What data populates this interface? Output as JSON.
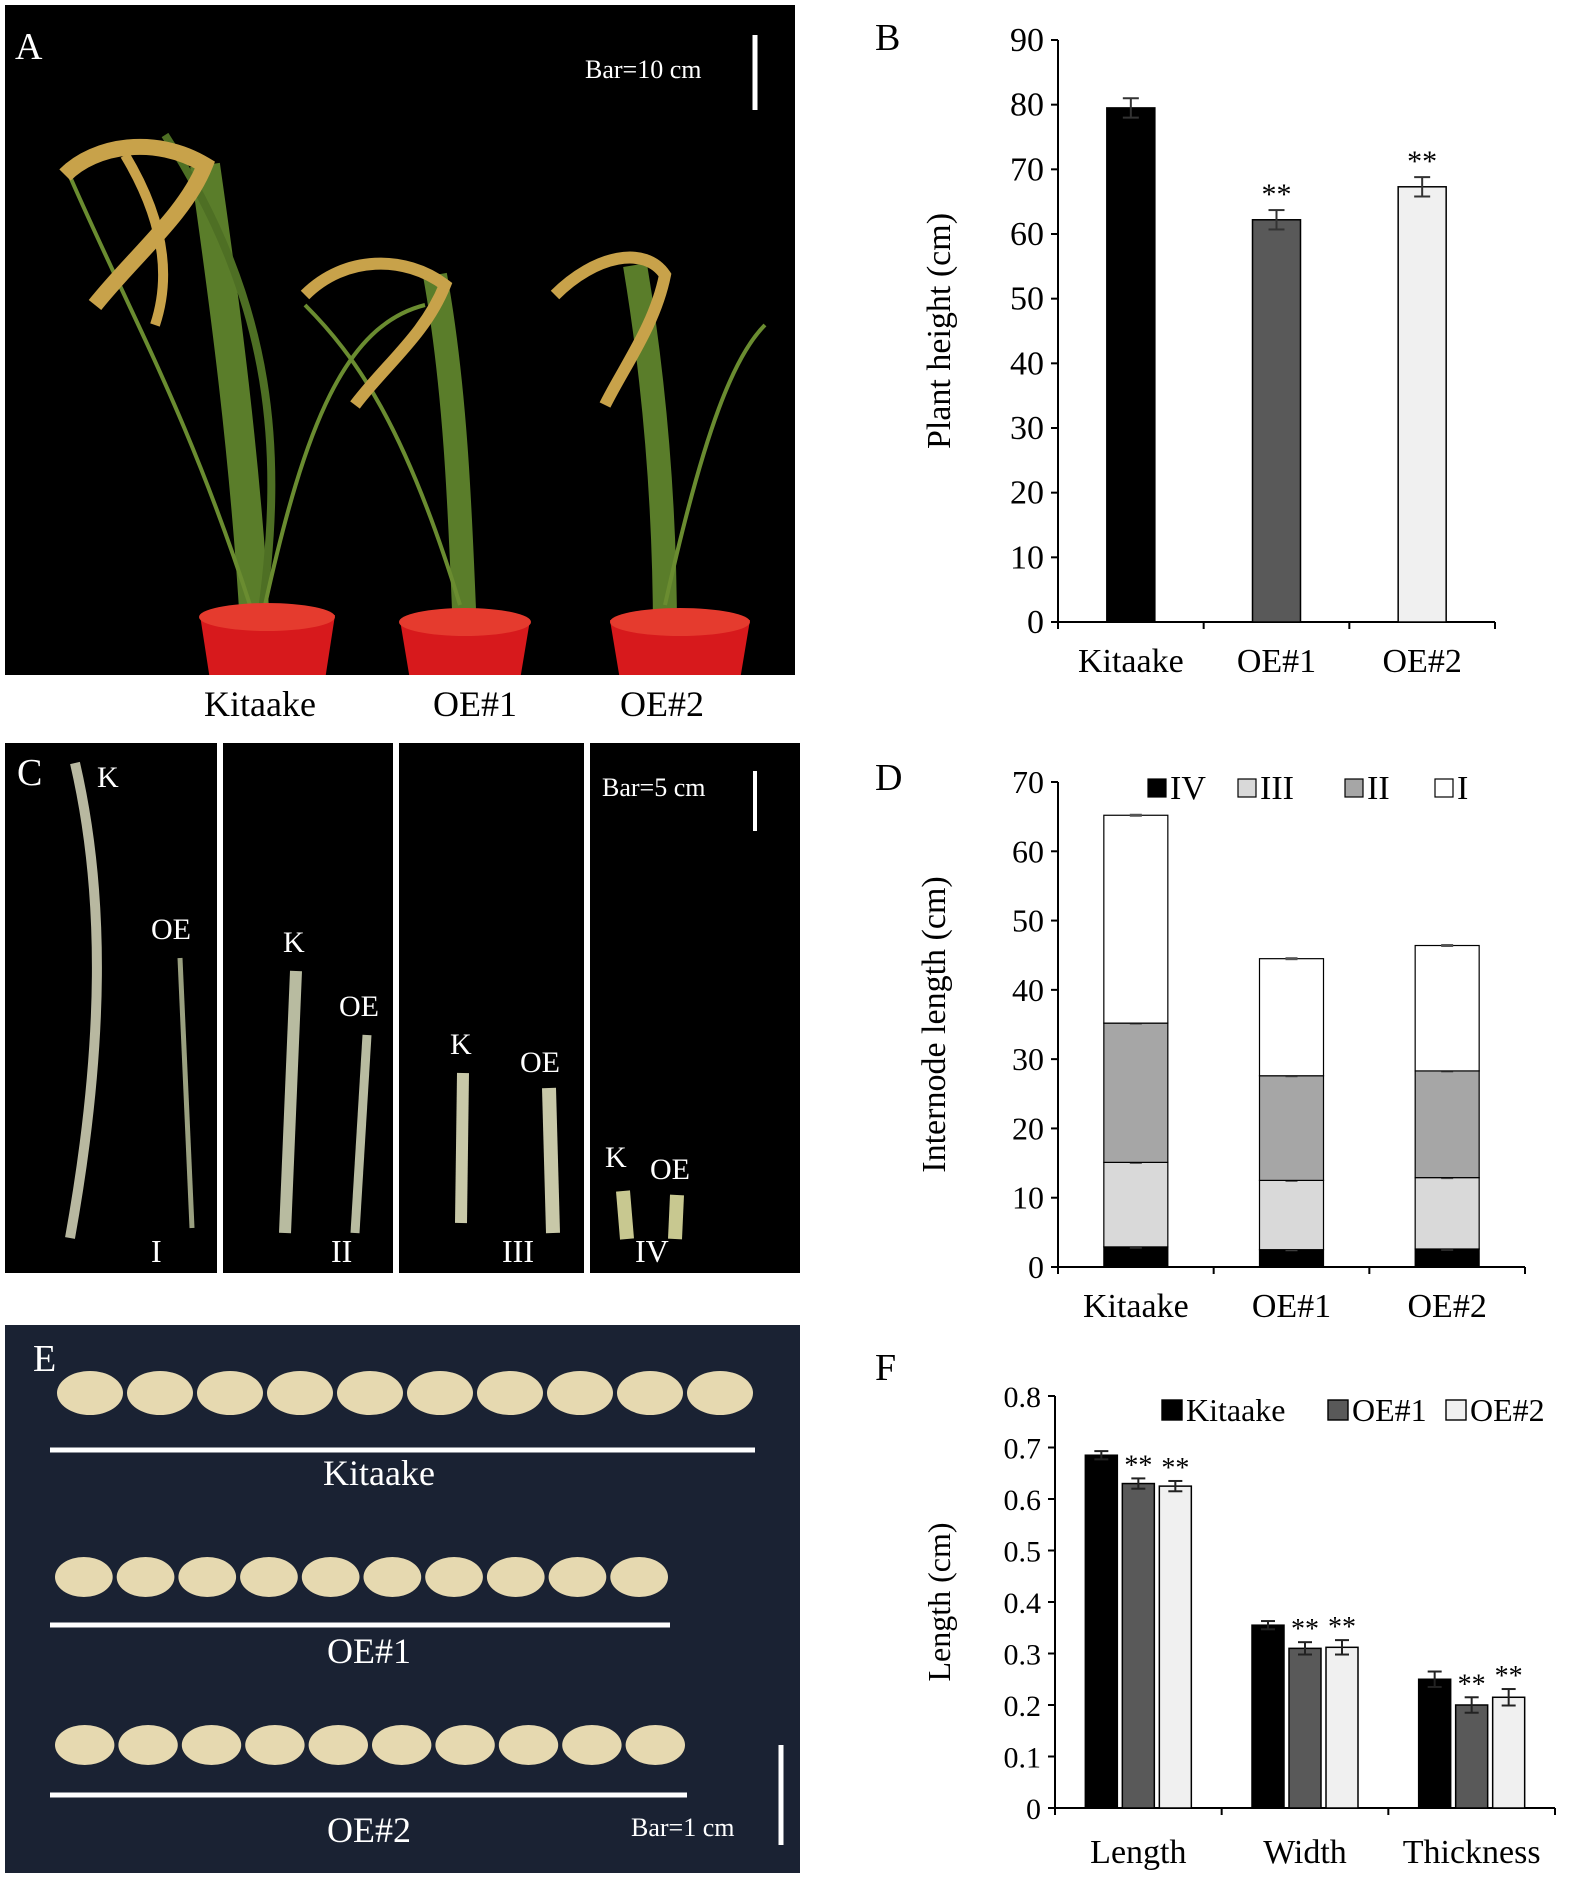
{
  "panels": {
    "A": {
      "letter": "A",
      "scale_bar": "Bar=10 cm",
      "captions": [
        "Kitaake",
        "OE#1",
        "OE#2"
      ]
    },
    "C": {
      "letter": "C",
      "scale_bar": "Bar=5 cm",
      "sections": [
        {
          "roman": "I",
          "k": "K",
          "oe": "OE"
        },
        {
          "roman": "II",
          "k": "K",
          "oe": "OE"
        },
        {
          "roman": "III",
          "k": "K",
          "oe": "OE"
        },
        {
          "roman": "IV",
          "k": "K",
          "oe": "OE"
        }
      ]
    },
    "E": {
      "letter": "E",
      "scale_bar": "Bar=1 cm",
      "rows": [
        "Kitaake",
        "OE#1",
        "OE#2"
      ]
    }
  },
  "colors": {
    "black": "#000000",
    "dark_gray": "#595959",
    "light_gray": "#f0f0f0",
    "mid_gray": "#a6a6a6",
    "stack_light": "#d9d9d9",
    "white": "#ffffff",
    "photo_bg": "#000000",
    "cloth_bg": "#1a2233",
    "pot_red": "#d7191c",
    "plant_green": "#5a7d2a",
    "panicle": "#c8a24a",
    "seed": "#e6d9b0"
  },
  "chart_data": [
    {
      "panel": "B",
      "type": "bar",
      "title": "",
      "xlabel": "",
      "ylabel": "Plant height (cm)",
      "ylim": [
        0,
        90
      ],
      "yticks": [
        0,
        10,
        20,
        30,
        40,
        50,
        60,
        70,
        80,
        90
      ],
      "categories": [
        "Kitaake",
        "OE#1",
        "OE#2"
      ],
      "values": [
        79.5,
        62.2,
        67.3
      ],
      "errors": [
        1.5,
        1.5,
        1.5
      ],
      "annotations": [
        "",
        "**",
        "**"
      ],
      "bar_colors": [
        "#000000",
        "#595959",
        "#f0f0f0"
      ]
    },
    {
      "panel": "D",
      "type": "bar",
      "stacked": true,
      "title": "",
      "xlabel": "",
      "ylabel": "Internode length (cm)",
      "ylim": [
        0,
        70
      ],
      "yticks": [
        0,
        10,
        20,
        30,
        40,
        50,
        60,
        70
      ],
      "categories": [
        "Kitaake",
        "OE#1",
        "OE#2"
      ],
      "legend_position": "top",
      "legend_order": [
        "IV",
        "III",
        "II",
        "I"
      ],
      "series": [
        {
          "name": "IV",
          "color": "#000000",
          "values": [
            2.9,
            2.5,
            2.6
          ],
          "cumulative": [
            2.9,
            2.5,
            2.6
          ]
        },
        {
          "name": "III",
          "color": "#d9d9d9",
          "values": [
            12.2,
            10.0,
            10.3
          ],
          "cumulative": [
            15.1,
            12.5,
            12.9
          ]
        },
        {
          "name": "II",
          "color": "#a6a6a6",
          "values": [
            20.1,
            15.1,
            15.4
          ],
          "cumulative": [
            35.2,
            27.6,
            28.3
          ]
        },
        {
          "name": "I",
          "color": "#ffffff",
          "values": [
            30.0,
            16.9,
            18.1
          ],
          "cumulative": [
            65.2,
            44.5,
            46.4
          ]
        }
      ]
    },
    {
      "panel": "F",
      "type": "bar",
      "title": "",
      "xlabel": "",
      "ylabel": "Length (cm)",
      "ylim": [
        0,
        0.8
      ],
      "yticks": [
        "0",
        "0.1",
        "0.2",
        "0.3",
        "0.4",
        "0.5",
        "0.6",
        "0.7",
        "0.8"
      ],
      "categories": [
        "Length",
        "Width",
        "Thickness"
      ],
      "legend_position": "top",
      "series": [
        {
          "name": "Kitaake",
          "color": "#000000",
          "values": [
            0.685,
            0.355,
            0.25
          ],
          "errors": [
            0.008,
            0.008,
            0.015
          ],
          "annotations": [
            "",
            "",
            ""
          ]
        },
        {
          "name": "OE#1",
          "color": "#595959",
          "values": [
            0.63,
            0.31,
            0.2
          ],
          "errors": [
            0.01,
            0.012,
            0.015
          ],
          "annotations": [
            "**",
            "**",
            "**"
          ]
        },
        {
          "name": "OE#2",
          "color": "#f0f0f0",
          "values": [
            0.625,
            0.312,
            0.215
          ],
          "errors": [
            0.01,
            0.014,
            0.016
          ],
          "annotations": [
            "**",
            "**",
            "**"
          ]
        }
      ]
    }
  ]
}
